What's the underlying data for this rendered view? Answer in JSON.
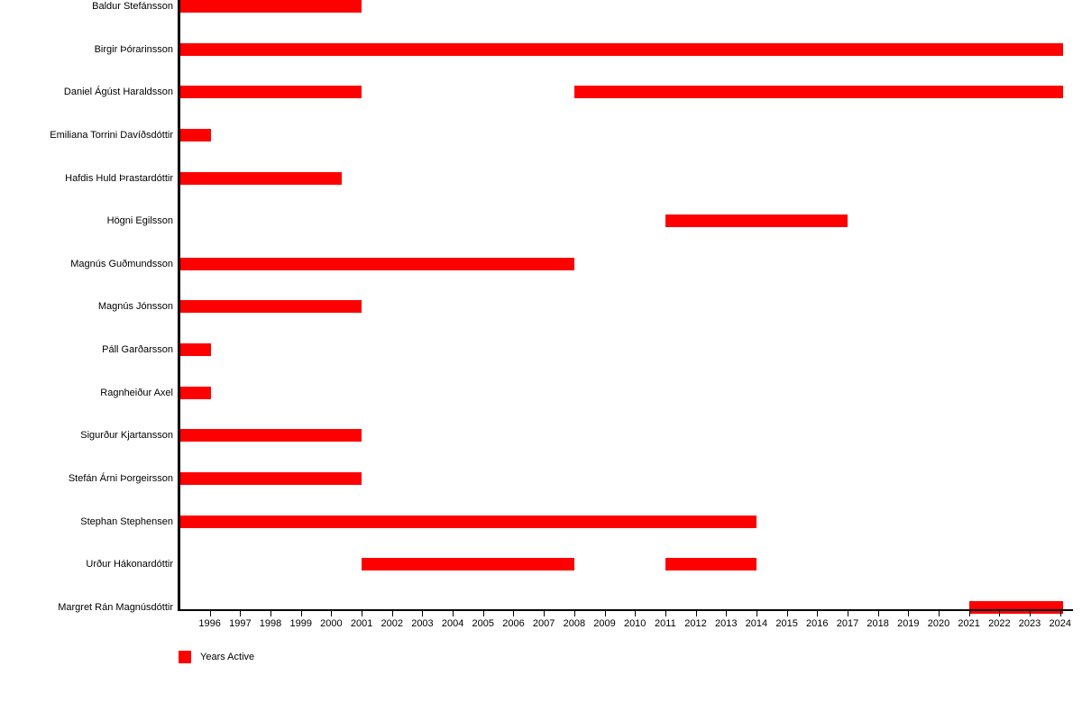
{
  "chart_data": {
    "type": "gantt",
    "title": "",
    "xlabel": "",
    "ylabel": "",
    "grid": false,
    "bar_color": "#ff0000",
    "axis_color": "#000000",
    "xlim": [
      1995,
      2024.45
    ],
    "x_ticks": [
      1996,
      1997,
      1998,
      1999,
      2000,
      2001,
      2002,
      2003,
      2004,
      2005,
      2006,
      2007,
      2008,
      2009,
      2010,
      2011,
      2012,
      2013,
      2014,
      2015,
      2016,
      2017,
      2018,
      2019,
      2020,
      2021,
      2022,
      2023,
      2024
    ],
    "legend": {
      "position": "bottom-left",
      "items": [
        {
          "label": "Years Active",
          "color": "#ff0000"
        }
      ]
    },
    "rows": [
      {
        "label": "Baldur Stefánsson",
        "periods": [
          [
            1995,
            2001
          ]
        ]
      },
      {
        "label": "Birgir Þórarinsson",
        "periods": [
          [
            1995,
            2024.1
          ]
        ]
      },
      {
        "label": "Daniel Ágúst Haraldsson",
        "periods": [
          [
            1995,
            2001
          ],
          [
            2008,
            2024.1
          ]
        ]
      },
      {
        "label": "Emiliana Torrini Davíðsdóttir",
        "periods": [
          [
            1995,
            1996.05
          ]
        ]
      },
      {
        "label": "Hafdis Huld Þrastardóttir",
        "periods": [
          [
            1995,
            2000.35
          ]
        ]
      },
      {
        "label": "Högni Egilsson",
        "periods": [
          [
            2011,
            2017
          ]
        ]
      },
      {
        "label": "Magnús Guðmundsson",
        "periods": [
          [
            1995,
            2008
          ]
        ]
      },
      {
        "label": "Magnús Jónsson",
        "periods": [
          [
            1995,
            2001
          ]
        ]
      },
      {
        "label": "Páll Garðarsson",
        "periods": [
          [
            1995,
            1996.05
          ]
        ]
      },
      {
        "label": "Ragnheiður Axel",
        "periods": [
          [
            1995,
            1996.05
          ]
        ]
      },
      {
        "label": "Sigurður Kjartansson",
        "periods": [
          [
            1995,
            2001
          ]
        ]
      },
      {
        "label": "Stefán Árni Þorgeirsson",
        "periods": [
          [
            1995,
            2001
          ]
        ]
      },
      {
        "label": "Stephan Stephensen",
        "periods": [
          [
            1995,
            2014
          ]
        ]
      },
      {
        "label": "Urður Hákonardóttir",
        "periods": [
          [
            2001,
            2008
          ],
          [
            2011,
            2014
          ]
        ]
      },
      {
        "label": "Margret Rán Magnúsdóttir",
        "periods": [
          [
            2021,
            2024.1
          ]
        ]
      }
    ]
  }
}
